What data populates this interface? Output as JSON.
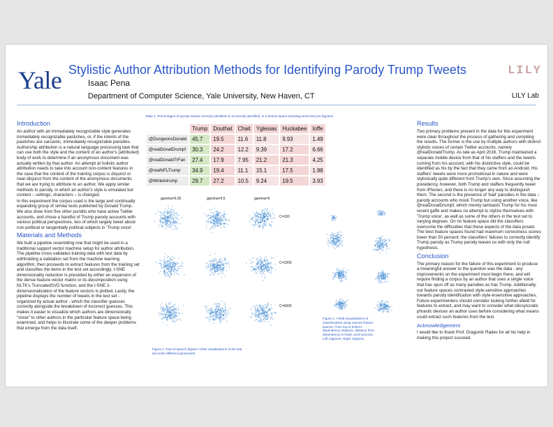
{
  "header": {
    "logo": "Yale",
    "title": "Stylistic Author Attribution Methods for Identifying Parody Trump Tweets",
    "author": "Isaac Pena",
    "department": "Department of Computer Science, Yale University, New Haven, CT",
    "lab_logo": "LILY",
    "lab_name": "LILY Lab"
  },
  "intro": {
    "heading": "Introduction",
    "paragraphs": [
      "An author with an immediately recognizable style generates immediately recognizable pastiches, or, if the intents of the pastiches are sarcastic, immediately recognizable parodies. Authorship attribution is a natural language processing task that can use both the style and the content of an author's (attributed) body of work to determine if an anonymous document was actually written by that author. An attempt at holistic author attribution needs to take into account non-content features in the case that the content of the training corpus is disjunct or near-disjunct from the content of the anonymous documents that we are trying to attribute to an author. We apply similar methods to parody, in which an author's style is emulated but content – settings, characters – is changed.",
      "In this experiment the corpus used is the large and continually expanding group of similar texts published by Donald Trump. We also drew from five other pundits who have active Twitter accounts, and chose a handful of Trump parody accounts with various political perspectives, two of which largely tweet about non-political or tangentially political subjects in 'Trump voice'."
    ]
  },
  "methods": {
    "heading": "Materials and Methods",
    "paragraphs": [
      "We built a pipeline resembling one that might be used in a traditional support vector machine setup for author attribution. The pipeline cross-validates training data with test data by withholding a validation set from the machine learning algorithm, then proceeds to extract features from the training set and classifies the items in the test set accordingly. t-SNE dimensionality reduction is preceded by either an expansion of the dense feature vector matrix or its decomposition using NLTK's TruncatedSVD function, and the t-SNE 2-dimensionalization of the feature vectors is plotted. Lastly, the pipeline displays the number of tweets in the test set - organized by actual author - which the classifier guesses correctly alongside the breakdown of incorrect guesses. This makes it easier to visualize which authors are dimensionally \"close\" to other authors in the particular feature space being examined, and helps to illustrate some of the deeper problems that emerge from the data itself."
    ]
  },
  "table": {
    "caption": "Table 1. Percentages of parody tweets correctly identified vs incorrectly identified, in a feature space including word and pos bigrams",
    "columns": [
      "Trump",
      "Douthat",
      "Chait",
      "Yglesias",
      "Huckabee",
      "Ioffe"
    ],
    "rows": [
      {
        "label": "@DungeonsDonald",
        "values": [
          "45.7",
          "19.5",
          "11.6",
          "11.8",
          "9.93",
          "1.49"
        ]
      },
      {
        "label": "@realDonalDrumpf",
        "values": [
          "30.3",
          "24.2",
          "12.2",
          "9.39",
          "17.2",
          "6.66"
        ]
      },
      {
        "label": "@realDonaldTrFan",
        "values": [
          "27.4",
          "17.9",
          "7.95",
          "21.2",
          "21.3",
          "4.25"
        ]
      },
      {
        "label": "@realNFLTrump",
        "values": [
          "34.9",
          "19.4",
          "11.1",
          "15.1",
          "17.5",
          "1.98"
        ]
      },
      {
        "label": "@Writeintrump",
        "values": [
          "29.7",
          "27.2",
          "10.5",
          "9.24",
          "19.5",
          "3.93"
        ]
      }
    ],
    "colors": {
      "header": "#f4d6d6",
      "trump": "#d4e8c4",
      "other": "#f4d6d6",
      "row_label": "#ececec"
    }
  },
  "figure1": {
    "col_labels": [
      "gamma=0.25",
      "gamma=0.5",
      "gamma=5"
    ],
    "row_labels": [
      "C=100",
      "C=1000",
      "C=5000"
    ],
    "caption": "Figure 1. Part-of-speech bigram t-SNE visualizations of the test set under different parameters",
    "point_color": "#4a8fd6"
  },
  "figure2": {
    "caption": "Figure 2. t-SNE visualizations of classifications using various feature spaces. From top to bottom: dependency relations, distance from dependency to head, word and pos. Left: bigrams. Right: trigrams."
  },
  "results": {
    "heading": "Results",
    "paragraphs": [
      "Two primary problems present in the data for this experiment were clear throughout the process of gathering and compiling the results. The former is the use by multiple authors with distinct stylistic voices of certain Twitter accounts, namely @realDonaldTrump. As late as April 2016, Trump maintained a separate mobile device from that of his staffers and the tweets coming from his account, with his distinctive style, could be identified as his by the fact that they came from an Android. His staffers' tweets were more promotional in nature and were stylistically quite different from Trump's own. Since assuming the presidency, however, both Trump and staffers frequently tweet from iPhones, and there is no longer any way to distinguish them. The second is the presence of 'bad' parodies in the data – parody accounts who mock Trump but using another voice, like @realDonalDrumpf, which merely lambasts Trump for his most recent gaffe and makes no attempt to stylize themselves with 'Trump voice', as well as some of the others in the test set to varying degrees. On no feature space did the classifiers overcome the difficulties that these aspects of the data posed. The best feature spaces found had maximum correctness scores lower than 50 percent; the classifiers' failures to correctly identify Trump parody as Trump parody leaves us with only the null hypothesis."
    ]
  },
  "conclusion": {
    "heading": "Conclusion",
    "paragraphs": [
      "The primary reason for the failure of this experiment to produce a meaningful answer to the question was the data - any improvements on the experiment must begin there, and will require finding a corpus by an author that uses a single voice that has spun off as many parodies as has Trump. Additionally, our feature spaces contrasted style-sensitive approaches towards parody identification with style-insensitive approaches. Future experimenters should consider looking further afield for features to extract, and may want to consider what idiosyncratic phrastic devices an author uses before considering what means could extract such features from the text."
    ]
  },
  "acknowledgement": {
    "heading": "Acknowledgement",
    "text": "I would like to thank Prof. Dragomir Radev for all his help in making this project succeed."
  }
}
